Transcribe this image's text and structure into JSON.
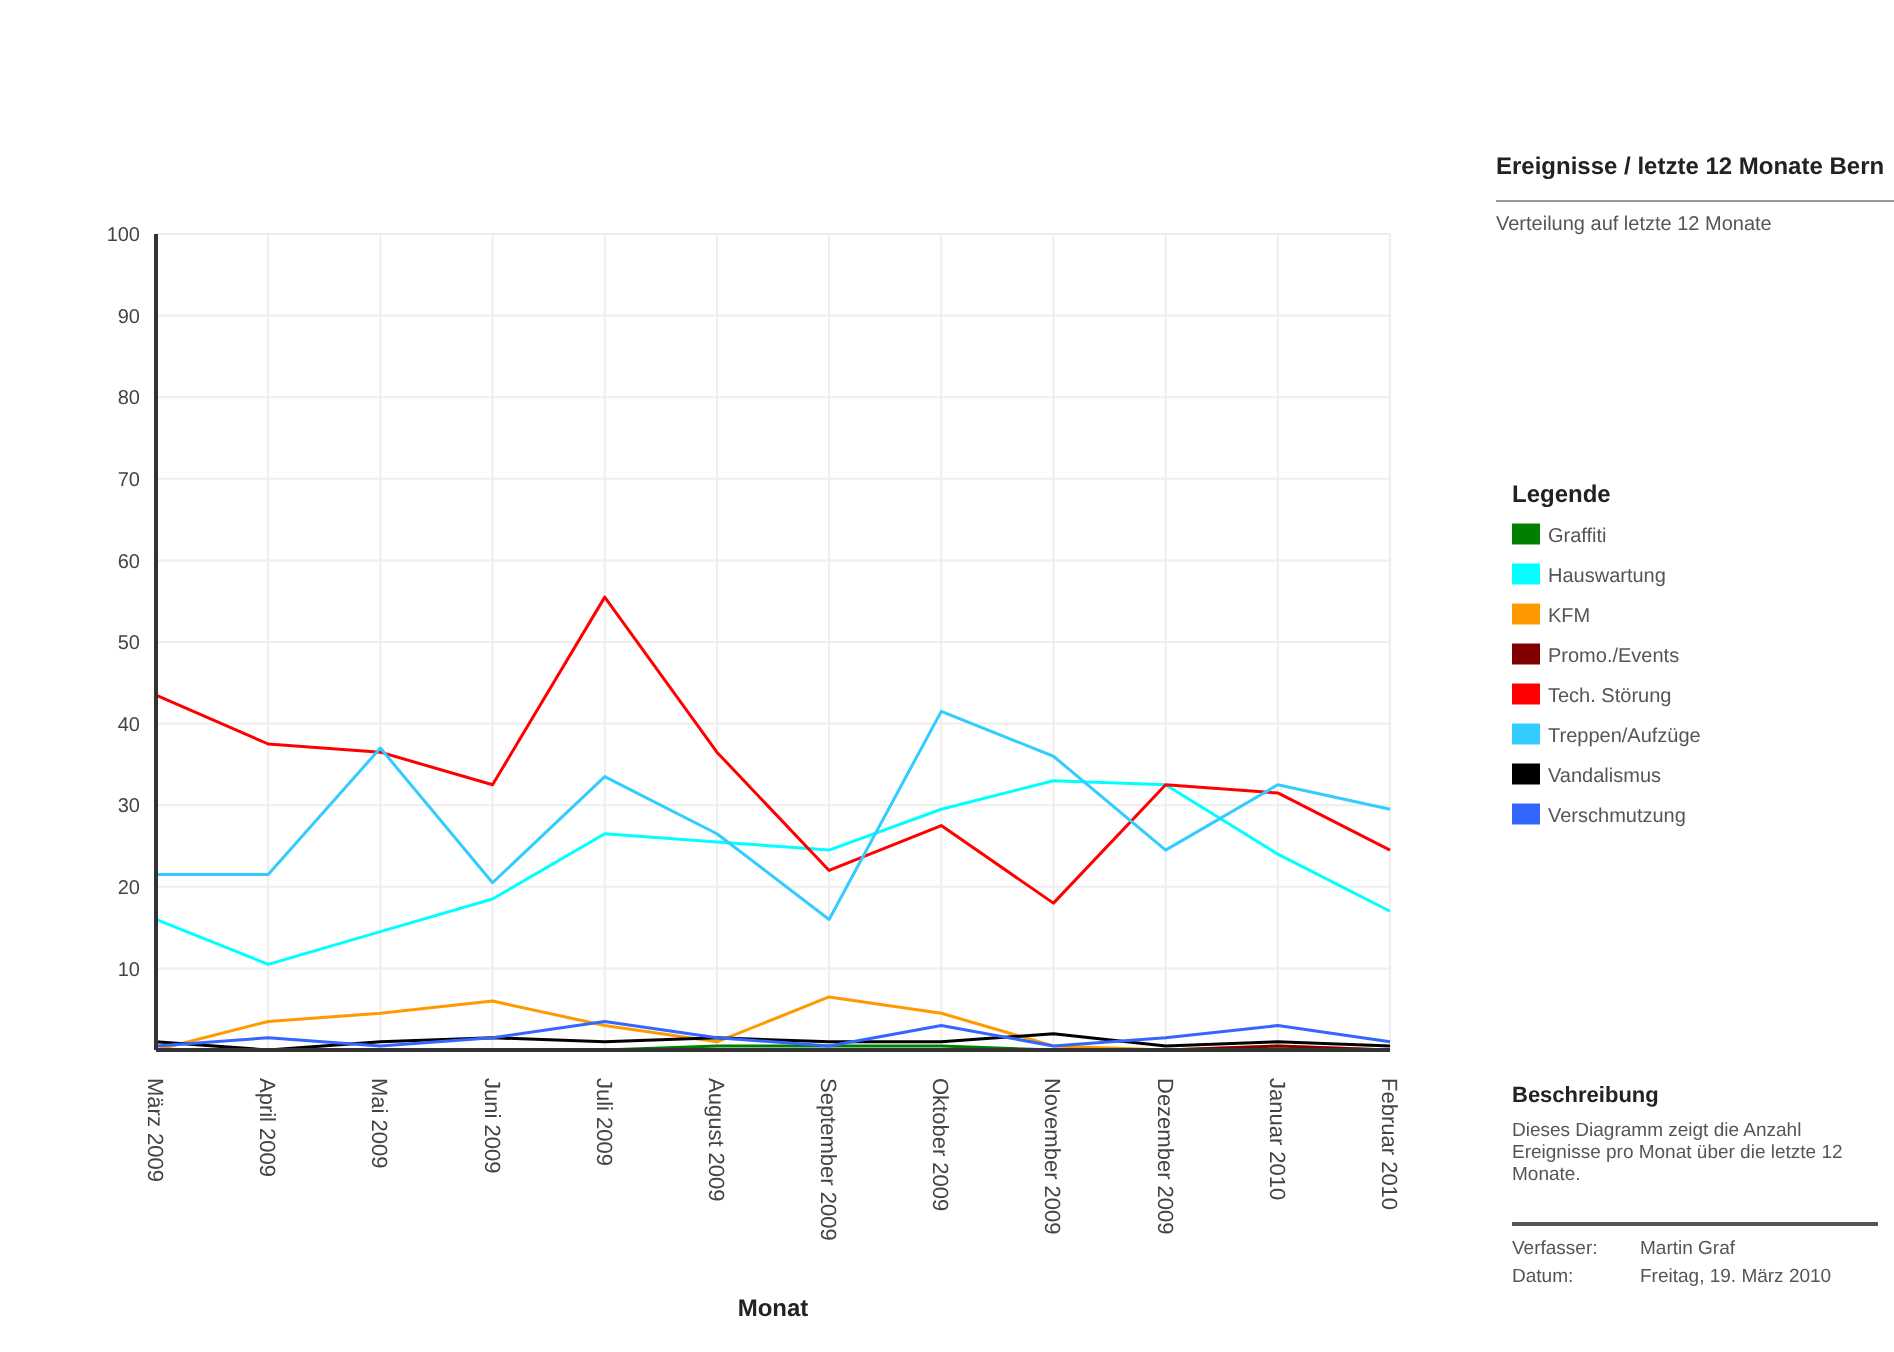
{
  "chart_data": {
    "type": "line",
    "title": "Ereignisse / letzte 12 Monate Bern",
    "subtitle": "Verteilung auf letzte 12 Monate",
    "xlabel": "Monat",
    "legend_title": "Legende",
    "categories": [
      "März 2009",
      "April 2009",
      "Mai 2009",
      "Juni 2009",
      "Juli 2009",
      "August 2009",
      "September 2009",
      "Oktober 2009",
      "November 2009",
      "Dezember 2009",
      "Januar 2010",
      "Februar 2010"
    ],
    "series": [
      {
        "name": "Graffiti",
        "color": "#008000",
        "values": [
          null,
          null,
          null,
          null,
          0,
          0.5,
          0.5,
          0.5,
          0,
          null,
          null,
          null
        ]
      },
      {
        "name": "Hauswartung",
        "color": "#00ffff",
        "values": [
          16,
          10.5,
          14.5,
          18.5,
          26.5,
          25.5,
          24.5,
          29.5,
          33,
          32.5,
          24,
          17
        ]
      },
      {
        "name": "KFM",
        "color": "#ff9900",
        "values": [
          0,
          3.5,
          4.5,
          6,
          3,
          1,
          6.5,
          4.5,
          0.5,
          0,
          0.5,
          0
        ]
      },
      {
        "name": "Promo./Events",
        "color": "#800000",
        "values": [
          null,
          null,
          null,
          null,
          null,
          null,
          null,
          null,
          0,
          0,
          0.5,
          0
        ]
      },
      {
        "name": "Tech. Störung",
        "color": "#ff0000",
        "values": [
          43.5,
          37.5,
          36.5,
          32.5,
          55.5,
          36.5,
          22,
          27.5,
          18,
          32.5,
          31.5,
          24.5
        ]
      },
      {
        "name": "Treppen/Aufzüge",
        "color": "#33ccff",
        "values": [
          21.5,
          21.5,
          37,
          20.5,
          33.5,
          26.5,
          16,
          41.5,
          36,
          24.5,
          32.5,
          29.5
        ]
      },
      {
        "name": "Vandalismus",
        "color": "#000000",
        "values": [
          1,
          0,
          1,
          1.5,
          1,
          1.5,
          1,
          1,
          2,
          0.5,
          1,
          0.5
        ]
      },
      {
        "name": "Verschmutzung",
        "color": "#3366ff",
        "values": [
          0.5,
          1.5,
          0.5,
          1.5,
          3.5,
          1.5,
          0.5,
          3,
          0.5,
          1.5,
          3,
          1
        ]
      }
    ],
    "ylim": [
      0,
      100
    ],
    "yticks": [
      {
        "value": 0,
        "label": null
      },
      10,
      20,
      30,
      40,
      50,
      60,
      70,
      80,
      90,
      100
    ],
    "grid": true,
    "legend": "right",
    "annotations": [
      "Beschreibung",
      "Dieses Diagramm zeigt die Anzahl Ereignisse pro Monat über die letzte 12 Monate.",
      "Verfasser:",
      "Martin Graf",
      "Datum:",
      "Freitag, 19. März 2010"
    ]
  }
}
